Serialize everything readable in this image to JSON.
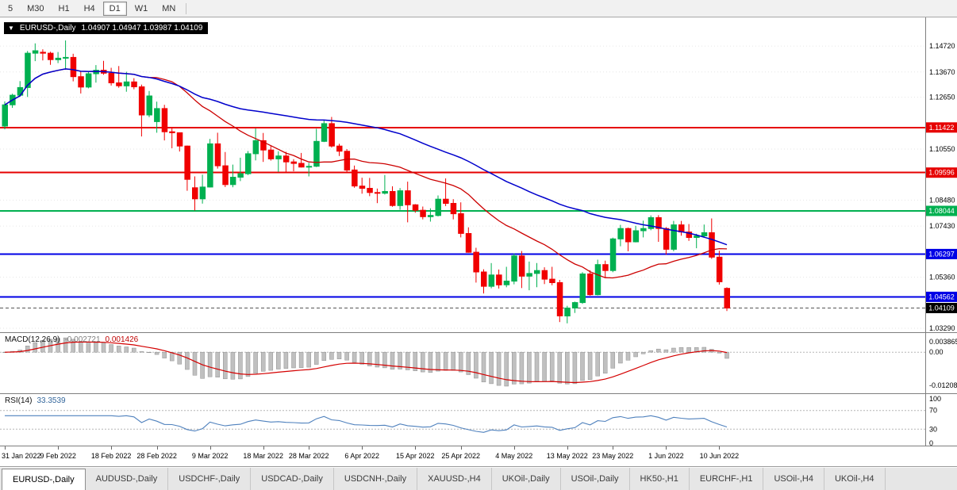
{
  "toolbar": {
    "timeframes": [
      "5",
      "M30",
      "H1",
      "H4",
      "D1",
      "W1",
      "MN"
    ],
    "active": "D1"
  },
  "chart": {
    "title": {
      "symbol": "EURUSD-,Daily",
      "ohlc": "1.04907 1.04947 1.03987 1.04109"
    },
    "macd_label": {
      "name": "MACD(12,26,9)",
      "main": "-0.002721",
      "signal": "0.001426"
    },
    "rsi_label": {
      "name": "RSI(14)",
      "value": "33.3539"
    }
  },
  "colors": {
    "candle_up": "#00b050",
    "candle_down": "#f00000",
    "ma_red": "#cc0000",
    "ma_blue": "#0000cc",
    "macd_bar_fill": "#c0c0c0",
    "macd_bar_stroke": "#8f8f8f",
    "macd_signal": "#d40000",
    "rsi_line": "#4f81bd",
    "current_price_badge": "#000000",
    "grid": "#e6e6e6"
  },
  "chart_data": {
    "type": "candlestick",
    "symbol": "EURUSD-",
    "timeframe": "Daily",
    "price_range": {
      "min": 1.0313,
      "max": 1.1588
    },
    "price_axis_ticks": [
      "1.14720",
      "1.13670",
      "1.12650",
      "1.10550",
      "1.08480",
      "1.07430",
      "1.05360",
      "1.03290"
    ],
    "horizontal_lines": [
      {
        "value": 1.11422,
        "label": "1.11422",
        "color": "#e60000"
      },
      {
        "value": 1.09596,
        "label": "1.09596",
        "color": "#e60000"
      },
      {
        "value": 1.08044,
        "label": "1.08044",
        "color": "#00b050"
      },
      {
        "value": 1.06297,
        "label": "1.06297",
        "color": "#0000e6"
      },
      {
        "value": 1.04562,
        "label": "1.04562",
        "color": "#0000e6"
      }
    ],
    "current_price": {
      "value": 1.04109,
      "label": "1.04109",
      "color": "#000000"
    },
    "moving_averages": [
      {
        "name": "ma-red",
        "type": "sma",
        "period": 20,
        "color": "#cc0000"
      },
      {
        "name": "ma-blue",
        "type": "sma",
        "period": 50,
        "color": "#0000cc"
      }
    ],
    "x_tick_labels": [
      "31 Jan 2022",
      "9 Feb 2022",
      "18 Feb 2022",
      "28 Feb 2022",
      "9 Mar 2022",
      "18 Mar 2022",
      "28 Mar 2022",
      "6 Apr 2022",
      "15 Apr 2022",
      "25 Apr 2022",
      "4 May 2022",
      "13 May 2022",
      "23 May 2022",
      "1 Jun 2022",
      "10 Jun 2022"
    ],
    "x_tick_indices": [
      0,
      7,
      14,
      20,
      27,
      34,
      40,
      47,
      54,
      60,
      67,
      74,
      80,
      87,
      94
    ],
    "candles_ohlc": [
      [
        1.1148,
        1.1248,
        1.1135,
        1.1234
      ],
      [
        1.1234,
        1.1279,
        1.1222,
        1.1273
      ],
      [
        1.1273,
        1.133,
        1.1267,
        1.1304
      ],
      [
        1.1304,
        1.1452,
        1.1266,
        1.1443
      ],
      [
        1.1443,
        1.1483,
        1.1411,
        1.1453
      ],
      [
        1.1447,
        1.1459,
        1.1414,
        1.1443
      ],
      [
        1.1443,
        1.1449,
        1.1396,
        1.1417
      ],
      [
        1.1417,
        1.1448,
        1.1403,
        1.1423
      ],
      [
        1.1423,
        1.1495,
        1.1376,
        1.1426
      ],
      [
        1.1426,
        1.1441,
        1.1329,
        1.1348
      ],
      [
        1.1348,
        1.1369,
        1.128,
        1.1306
      ],
      [
        1.1306,
        1.1368,
        1.1301,
        1.136
      ],
      [
        1.136,
        1.1395,
        1.1324,
        1.1374
      ],
      [
        1.1374,
        1.1412,
        1.1356,
        1.1362
      ],
      [
        1.1362,
        1.1384,
        1.1312,
        1.1323
      ],
      [
        1.1323,
        1.1391,
        1.1303,
        1.1311
      ],
      [
        1.1311,
        1.1368,
        1.1287,
        1.1327
      ],
      [
        1.1327,
        1.1342,
        1.1297,
        1.1307
      ],
      [
        1.1307,
        1.1316,
        1.1106,
        1.1193
      ],
      [
        1.1193,
        1.129,
        1.1184,
        1.127
      ],
      [
        1.1166,
        1.1247,
        1.1121,
        1.1219
      ],
      [
        1.1219,
        1.1234,
        1.109,
        1.1125
      ],
      [
        1.1125,
        1.1144,
        1.1058,
        1.1121
      ],
      [
        1.1121,
        1.1121,
        1.1045,
        1.1067
      ],
      [
        1.1067,
        1.1069,
        1.0886,
        1.0932
      ],
      [
        1.0898,
        1.0944,
        1.0806,
        1.0853
      ],
      [
        1.0853,
        1.0951,
        1.0834,
        1.0901
      ],
      [
        1.0901,
        1.1096,
        1.0899,
        1.1076
      ],
      [
        1.1076,
        1.1121,
        1.0976,
        1.0987
      ],
      [
        1.0987,
        1.1043,
        1.0901,
        1.0911
      ],
      [
        1.0911,
        1.0992,
        1.09,
        1.0941
      ],
      [
        1.0941,
        1.102,
        1.0925,
        1.0955
      ],
      [
        1.0955,
        1.1047,
        1.095,
        1.1036
      ],
      [
        1.1036,
        1.1138,
        1.1009,
        1.1089
      ],
      [
        1.1089,
        1.112,
        1.1003,
        1.1051
      ],
      [
        1.1051,
        1.1069,
        1.1008,
        1.1015
      ],
      [
        1.1015,
        1.1046,
        1.0962,
        1.1027
      ],
      [
        1.1027,
        1.1044,
        1.0963,
        1.1003
      ],
      [
        1.1003,
        1.1014,
        1.0965,
        1.0997
      ],
      [
        1.0997,
        1.1039,
        1.098,
        1.0982
      ],
      [
        1.0982,
        1.0999,
        1.0944,
        1.0985
      ],
      [
        1.0985,
        1.1137,
        1.0982,
        1.1086
      ],
      [
        1.1086,
        1.1171,
        1.1083,
        1.1158
      ],
      [
        1.1158,
        1.1185,
        1.1061,
        1.1067
      ],
      [
        1.1067,
        1.1076,
        1.1027,
        1.1046
      ],
      [
        1.1046,
        1.1055,
        1.0961,
        1.097
      ],
      [
        1.097,
        1.0988,
        1.0898,
        1.0905
      ],
      [
        1.0905,
        1.0939,
        1.0874,
        1.0896
      ],
      [
        1.0896,
        1.0938,
        1.0864,
        1.0879
      ],
      [
        1.0879,
        1.0895,
        1.0836,
        1.0876
      ],
      [
        1.0876,
        1.095,
        1.0871,
        1.0883
      ],
      [
        1.0883,
        1.0904,
        1.0821,
        1.0826
      ],
      [
        1.0826,
        1.0897,
        1.0809,
        1.0886
      ],
      [
        1.0886,
        1.0923,
        1.0758,
        1.0829
      ],
      [
        1.0829,
        1.0832,
        1.0797,
        1.0807
      ],
      [
        1.0807,
        1.0822,
        1.077,
        1.0781
      ],
      [
        1.0781,
        1.0815,
        1.0761,
        1.0786
      ],
      [
        1.0786,
        1.0867,
        1.0782,
        1.0852
      ],
      [
        1.0852,
        1.0936,
        1.0824,
        1.0835
      ],
      [
        1.0835,
        1.0852,
        1.077,
        1.0793
      ],
      [
        1.0793,
        1.0839,
        1.0697,
        1.0713
      ],
      [
        1.0713,
        1.0738,
        1.0635,
        1.0637
      ],
      [
        1.0637,
        1.0655,
        1.0514,
        1.0557
      ],
      [
        1.0557,
        1.0568,
        1.047,
        1.0499
      ],
      [
        1.0499,
        1.0593,
        1.0491,
        1.0545
      ],
      [
        1.0545,
        1.0567,
        1.049,
        1.0505
      ],
      [
        1.0505,
        1.0578,
        1.0495,
        1.052
      ],
      [
        1.052,
        1.0632,
        1.0507,
        1.0622
      ],
      [
        1.0622,
        1.0642,
        1.0492,
        1.054
      ],
      [
        1.054,
        1.0599,
        1.0483,
        1.0551
      ],
      [
        1.0551,
        1.0593,
        1.0495,
        1.0563
      ],
      [
        1.0563,
        1.0576,
        1.0508,
        1.0528
      ],
      [
        1.0528,
        1.0578,
        1.0503,
        1.0514
      ],
      [
        1.0514,
        1.0525,
        1.0354,
        1.0379
      ],
      [
        1.0379,
        1.042,
        1.0349,
        1.0411
      ],
      [
        1.0411,
        1.0437,
        1.0391,
        1.0433
      ],
      [
        1.0433,
        1.0556,
        1.0428,
        1.0549
      ],
      [
        1.0549,
        1.0564,
        1.0461,
        1.0465
      ],
      [
        1.0465,
        1.0607,
        1.0462,
        1.0587
      ],
      [
        1.0587,
        1.0603,
        1.0532,
        1.0563
      ],
      [
        1.0563,
        1.0696,
        1.0556,
        1.0691
      ],
      [
        1.0691,
        1.0748,
        1.0661,
        1.0733
      ],
      [
        1.0733,
        1.0737,
        1.0641,
        1.0679
      ],
      [
        1.0679,
        1.0744,
        1.0677,
        1.0724
      ],
      [
        1.0724,
        1.0765,
        1.0697,
        1.0733
      ],
      [
        1.0733,
        1.0786,
        1.0726,
        1.0777
      ],
      [
        1.0777,
        1.0787,
        1.0679,
        1.0733
      ],
      [
        1.0733,
        1.0739,
        1.0627,
        1.0649
      ],
      [
        1.0649,
        1.0764,
        1.0641,
        1.0748
      ],
      [
        1.0748,
        1.0764,
        1.0704,
        1.0719
      ],
      [
        1.0719,
        1.0751,
        1.0683,
        1.0697
      ],
      [
        1.0697,
        1.0712,
        1.0653,
        1.0703
      ],
      [
        1.0703,
        1.0749,
        1.0699,
        1.0716
      ],
      [
        1.0716,
        1.0774,
        1.061,
        1.0617
      ],
      [
        1.0617,
        1.0643,
        1.0506,
        1.0517
      ],
      [
        1.04907,
        1.04947,
        1.03987,
        1.04109
      ]
    ],
    "indicator_panes": {
      "macd": {
        "params": [
          12,
          26,
          9
        ],
        "axis_ticks": [
          "0.003865",
          "0.00",
          "-0.01208"
        ],
        "range": {
          "min": -0.015,
          "max": 0.007
        },
        "current_main": "-0.002721",
        "current_signal": "0.001426"
      },
      "rsi": {
        "period": 14,
        "axis_ticks": [
          "100",
          "70",
          "30",
          "0"
        ],
        "levels": [
          70,
          30
        ],
        "range": {
          "min": 0,
          "max": 100
        },
        "current": "33.3539"
      }
    }
  },
  "tabs": [
    {
      "label": "EURUSD-,Daily",
      "active": true
    },
    {
      "label": "AUDUSD-,Daily",
      "active": false
    },
    {
      "label": "USDCHF-,Daily",
      "active": false
    },
    {
      "label": "USDCAD-,Daily",
      "active": false
    },
    {
      "label": "USDCNH-,Daily",
      "active": false
    },
    {
      "label": "XAUUSD-,H4",
      "active": false
    },
    {
      "label": "UKOil-,Daily",
      "active": false
    },
    {
      "label": "USOil-,Daily",
      "active": false
    },
    {
      "label": "HK50-,H1",
      "active": false
    },
    {
      "label": "EURCHF-,H1",
      "active": false
    },
    {
      "label": "USOil-,H4",
      "active": false
    },
    {
      "label": "UKOil-,H4",
      "active": false
    }
  ]
}
